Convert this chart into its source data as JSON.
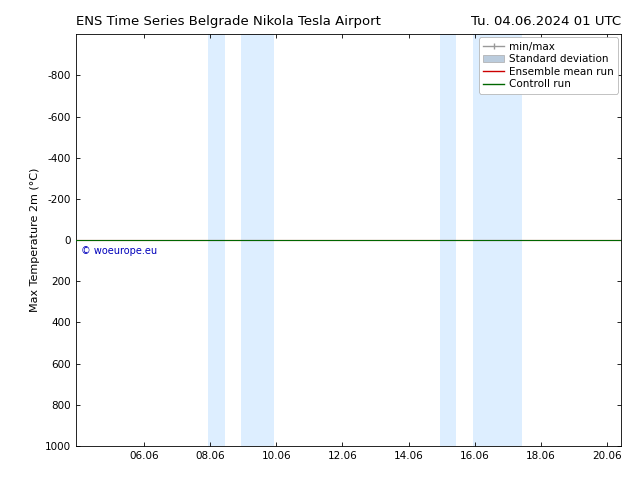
{
  "title_left": "ENS Time Series Belgrade Nikola Tesla Airport",
  "title_right": "Tu. 04.06.2024 01 UTC",
  "ylabel": "Max Temperature 2m (°C)",
  "xlim": [
    4.0,
    20.5
  ],
  "ylim": [
    1000,
    -1000
  ],
  "yticks": [
    -800,
    -600,
    -400,
    -200,
    0,
    200,
    400,
    600,
    800,
    1000
  ],
  "xticks": [
    6.06,
    8.06,
    10.06,
    12.06,
    14.06,
    16.06,
    18.06,
    20.06
  ],
  "xtick_labels": [
    "06.06",
    "08.06",
    "10.06",
    "12.06",
    "14.06",
    "16.06",
    "18.06",
    "20.06"
  ],
  "shaded_regions": [
    [
      8.0,
      8.5
    ],
    [
      9.0,
      10.0
    ],
    [
      15.0,
      15.5
    ],
    [
      16.0,
      17.5
    ]
  ],
  "shaded_color": "#ddeeff",
  "control_run_y": 0,
  "control_run_color": "#006600",
  "ensemble_mean_color": "#cc0000",
  "minmax_color": "#999999",
  "std_dev_color": "#bbccdd",
  "watermark_text": "© woeurope.eu",
  "watermark_color": "#0000bb",
  "background_color": "#ffffff",
  "legend_labels": [
    "min/max",
    "Standard deviation",
    "Ensemble mean run",
    "Controll run"
  ],
  "legend_colors_line": [
    "#999999",
    "#bbccdd",
    "#cc0000",
    "#006600"
  ],
  "title_fontsize": 9.5,
  "axis_label_fontsize": 8,
  "tick_fontsize": 7.5,
  "legend_fontsize": 7.5
}
